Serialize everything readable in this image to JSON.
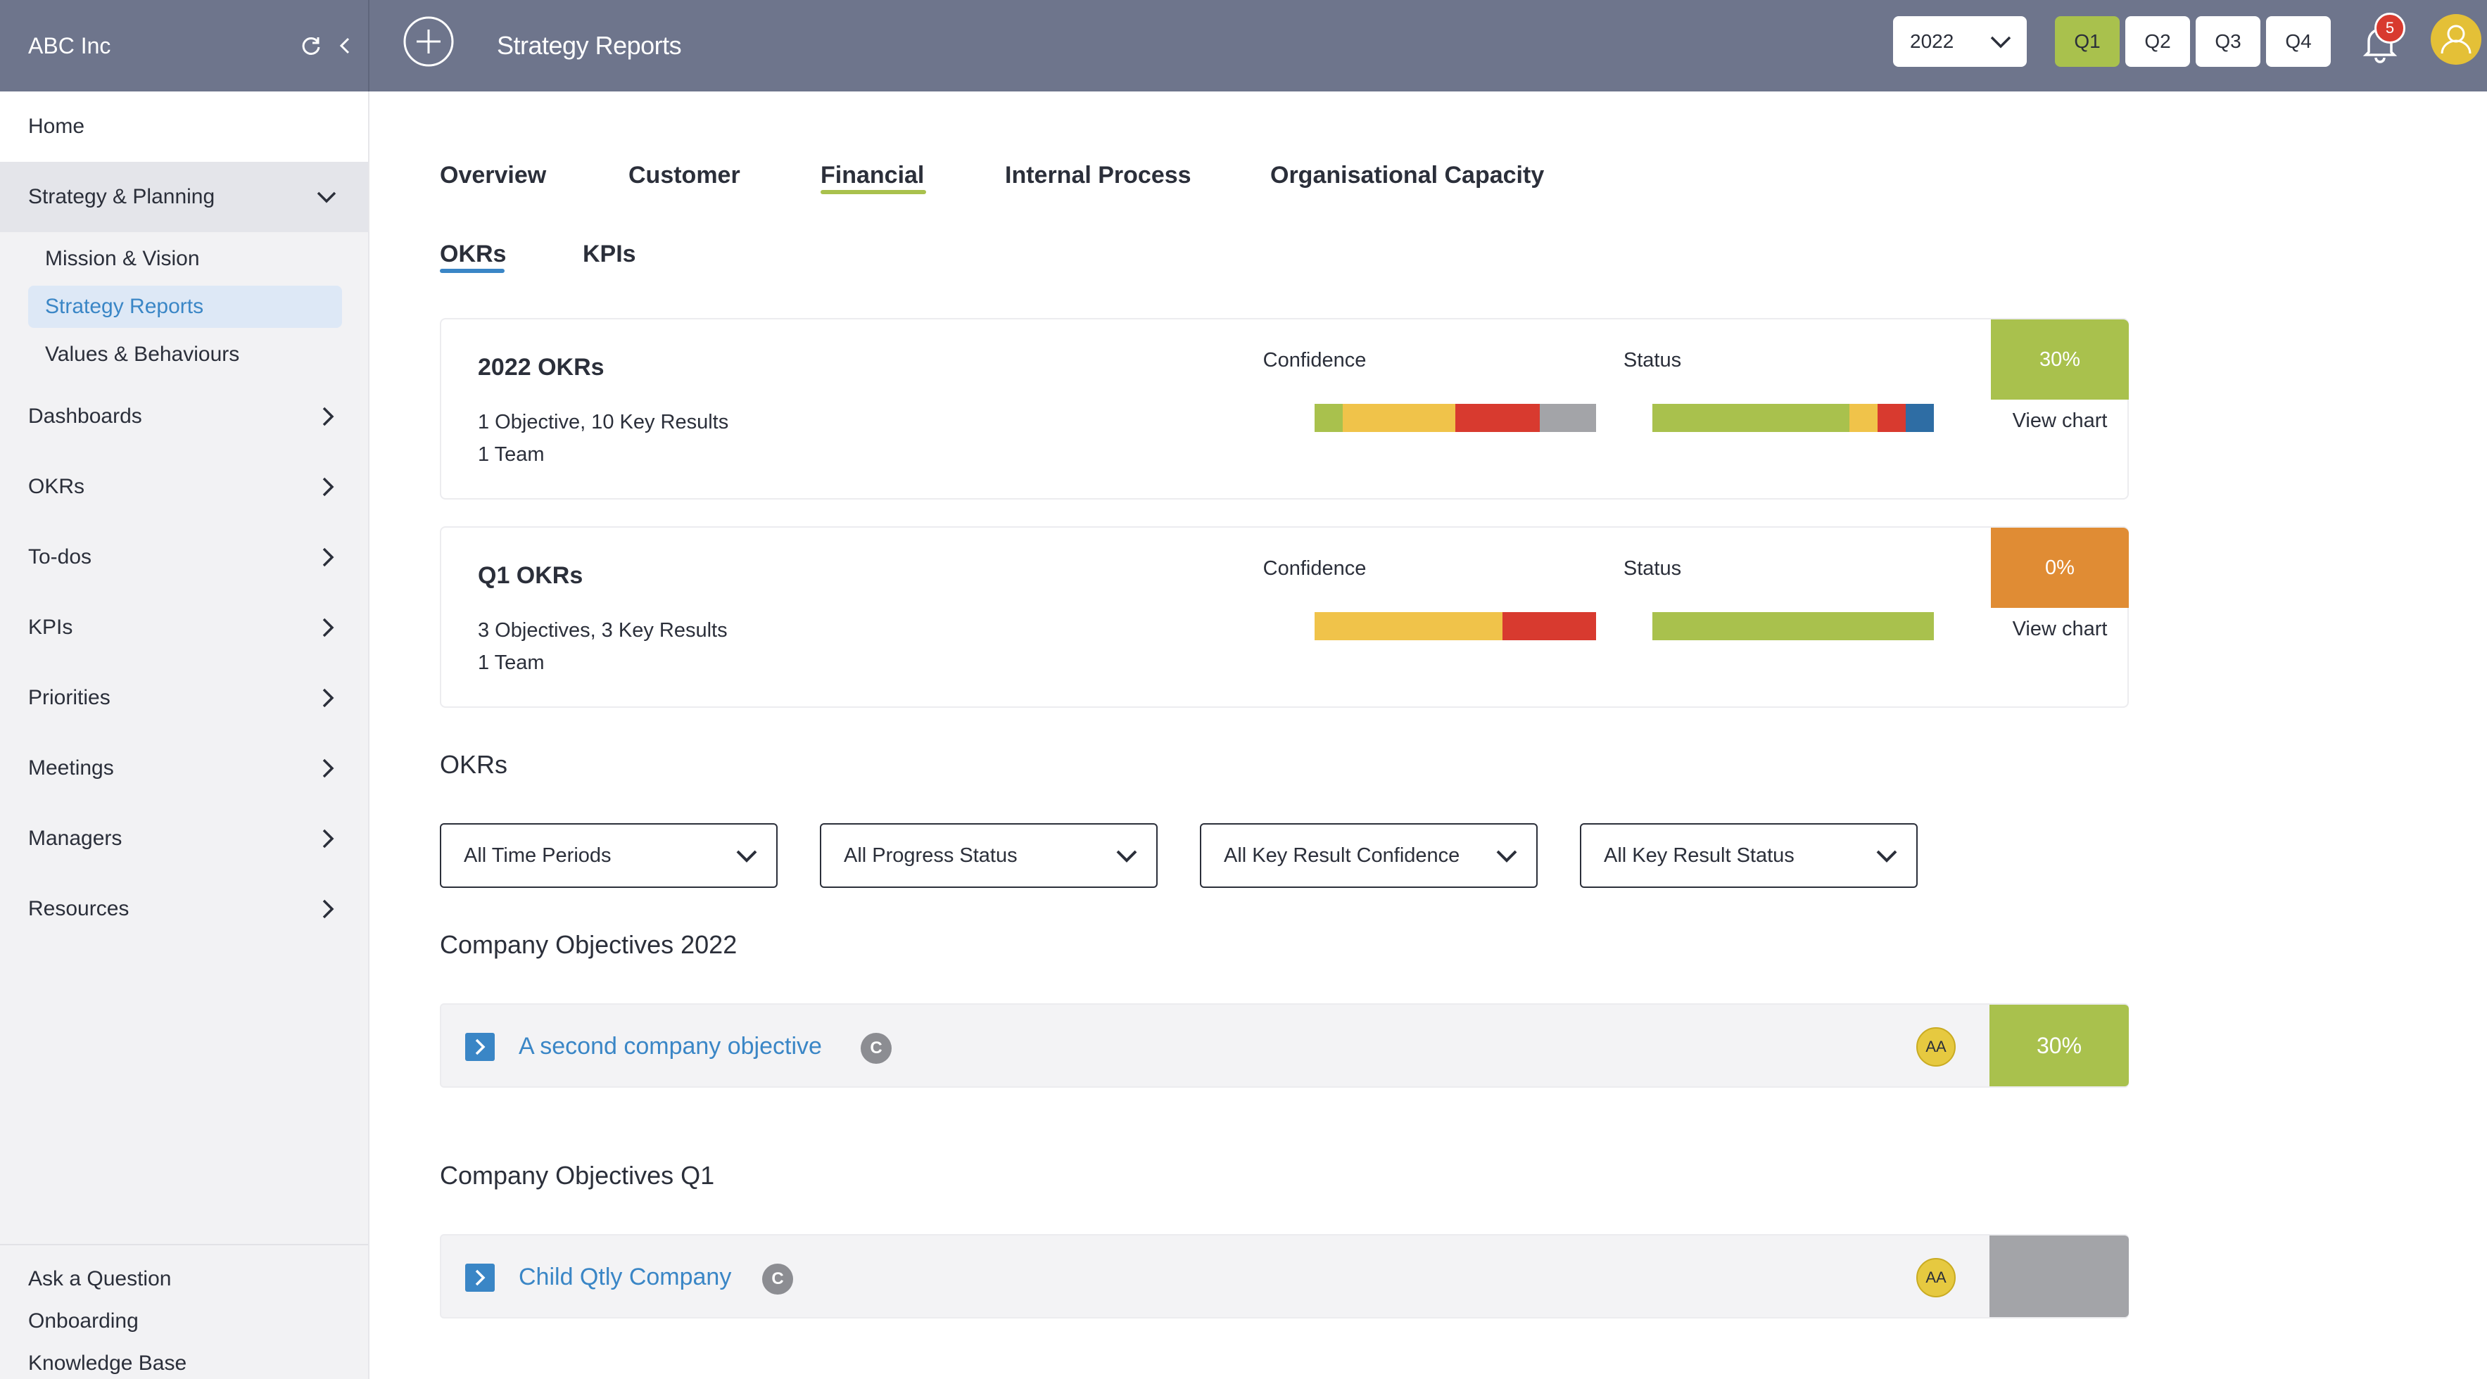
{
  "colors": {
    "topbar": "#6e758c",
    "accent_green": "#a9c14d",
    "accent_orange": "#e08c34",
    "accent_blue": "#3a86c6",
    "neutral_gray": "#a3a4a8",
    "bar_green": "#a9c14d",
    "bar_yellow": "#f0c34a",
    "bar_red": "#d83a2f",
    "bar_gray": "#a3a4a8",
    "bar_blue": "#2e6da4"
  },
  "header": {
    "org_name": "ABC Inc",
    "page_title": "Strategy Reports",
    "year": "2022",
    "quarters": [
      "Q1",
      "Q2",
      "Q3",
      "Q4"
    ],
    "active_quarter": "Q1",
    "notification_count": "5"
  },
  "sidebar": {
    "home": "Home",
    "expanded_section": "Strategy & Planning",
    "sub_items": [
      "Mission & Vision",
      "Strategy Reports",
      "Values & Behaviours"
    ],
    "active_sub_item": "Strategy Reports",
    "items": [
      "Dashboards",
      "OKRs",
      "To-dos",
      "KPIs",
      "Priorities",
      "Meetings",
      "Managers",
      "Resources"
    ],
    "footer_links": [
      "Ask a Question",
      "Onboarding",
      "Knowledge Base"
    ]
  },
  "tabs": {
    "main": [
      "Overview",
      "Customer",
      "Financial",
      "Internal Process",
      "Organisational Capacity"
    ],
    "active_main": "Financial",
    "sub": [
      "OKRs",
      "KPIs"
    ],
    "active_sub": "OKRs"
  },
  "summary_cards": [
    {
      "title": "2022 OKRs",
      "counts": "1 Objective, 10 Key Results",
      "teams": "1 Team",
      "confidence_label": "Confidence",
      "status_label": "Status",
      "confidence_segments": [
        {
          "color": "green",
          "fraction": 0.1
        },
        {
          "color": "yellow",
          "fraction": 0.4
        },
        {
          "color": "red",
          "fraction": 0.3
        },
        {
          "color": "gray",
          "fraction": 0.2
        }
      ],
      "status_segments": [
        {
          "color": "green",
          "fraction": 0.7
        },
        {
          "color": "yellow",
          "fraction": 0.1
        },
        {
          "color": "red",
          "fraction": 0.1
        },
        {
          "color": "blue",
          "fraction": 0.1
        }
      ],
      "progress": "30%",
      "progress_color": "green",
      "view_chart": "View chart"
    },
    {
      "title": "Q1 OKRs",
      "counts": "3 Objectives, 3 Key Results",
      "teams": "1 Team",
      "confidence_label": "Confidence",
      "status_label": "Status",
      "confidence_segments": [
        {
          "color": "yellow",
          "fraction": 0.667
        },
        {
          "color": "red",
          "fraction": 0.333
        }
      ],
      "status_segments": [
        {
          "color": "green",
          "fraction": 1.0
        }
      ],
      "progress": "0%",
      "progress_color": "orange",
      "view_chart": "View chart"
    }
  ],
  "okrs_section": {
    "title": "OKRs",
    "filters": [
      "All Time Periods",
      "All Progress Status",
      "All Key Result Confidence",
      "All Key Result Status"
    ]
  },
  "objective_groups": [
    {
      "heading": "Company Objectives 2022",
      "objective": "A second company objective",
      "type_badge": "C",
      "owner_initials": "AA",
      "progress": "30%",
      "progress_color": "green"
    },
    {
      "heading": "Company Objectives Q1",
      "objective": "Child Qtly Company",
      "type_badge": "C",
      "owner_initials": "AA",
      "progress": "",
      "progress_color": "gray"
    }
  ]
}
